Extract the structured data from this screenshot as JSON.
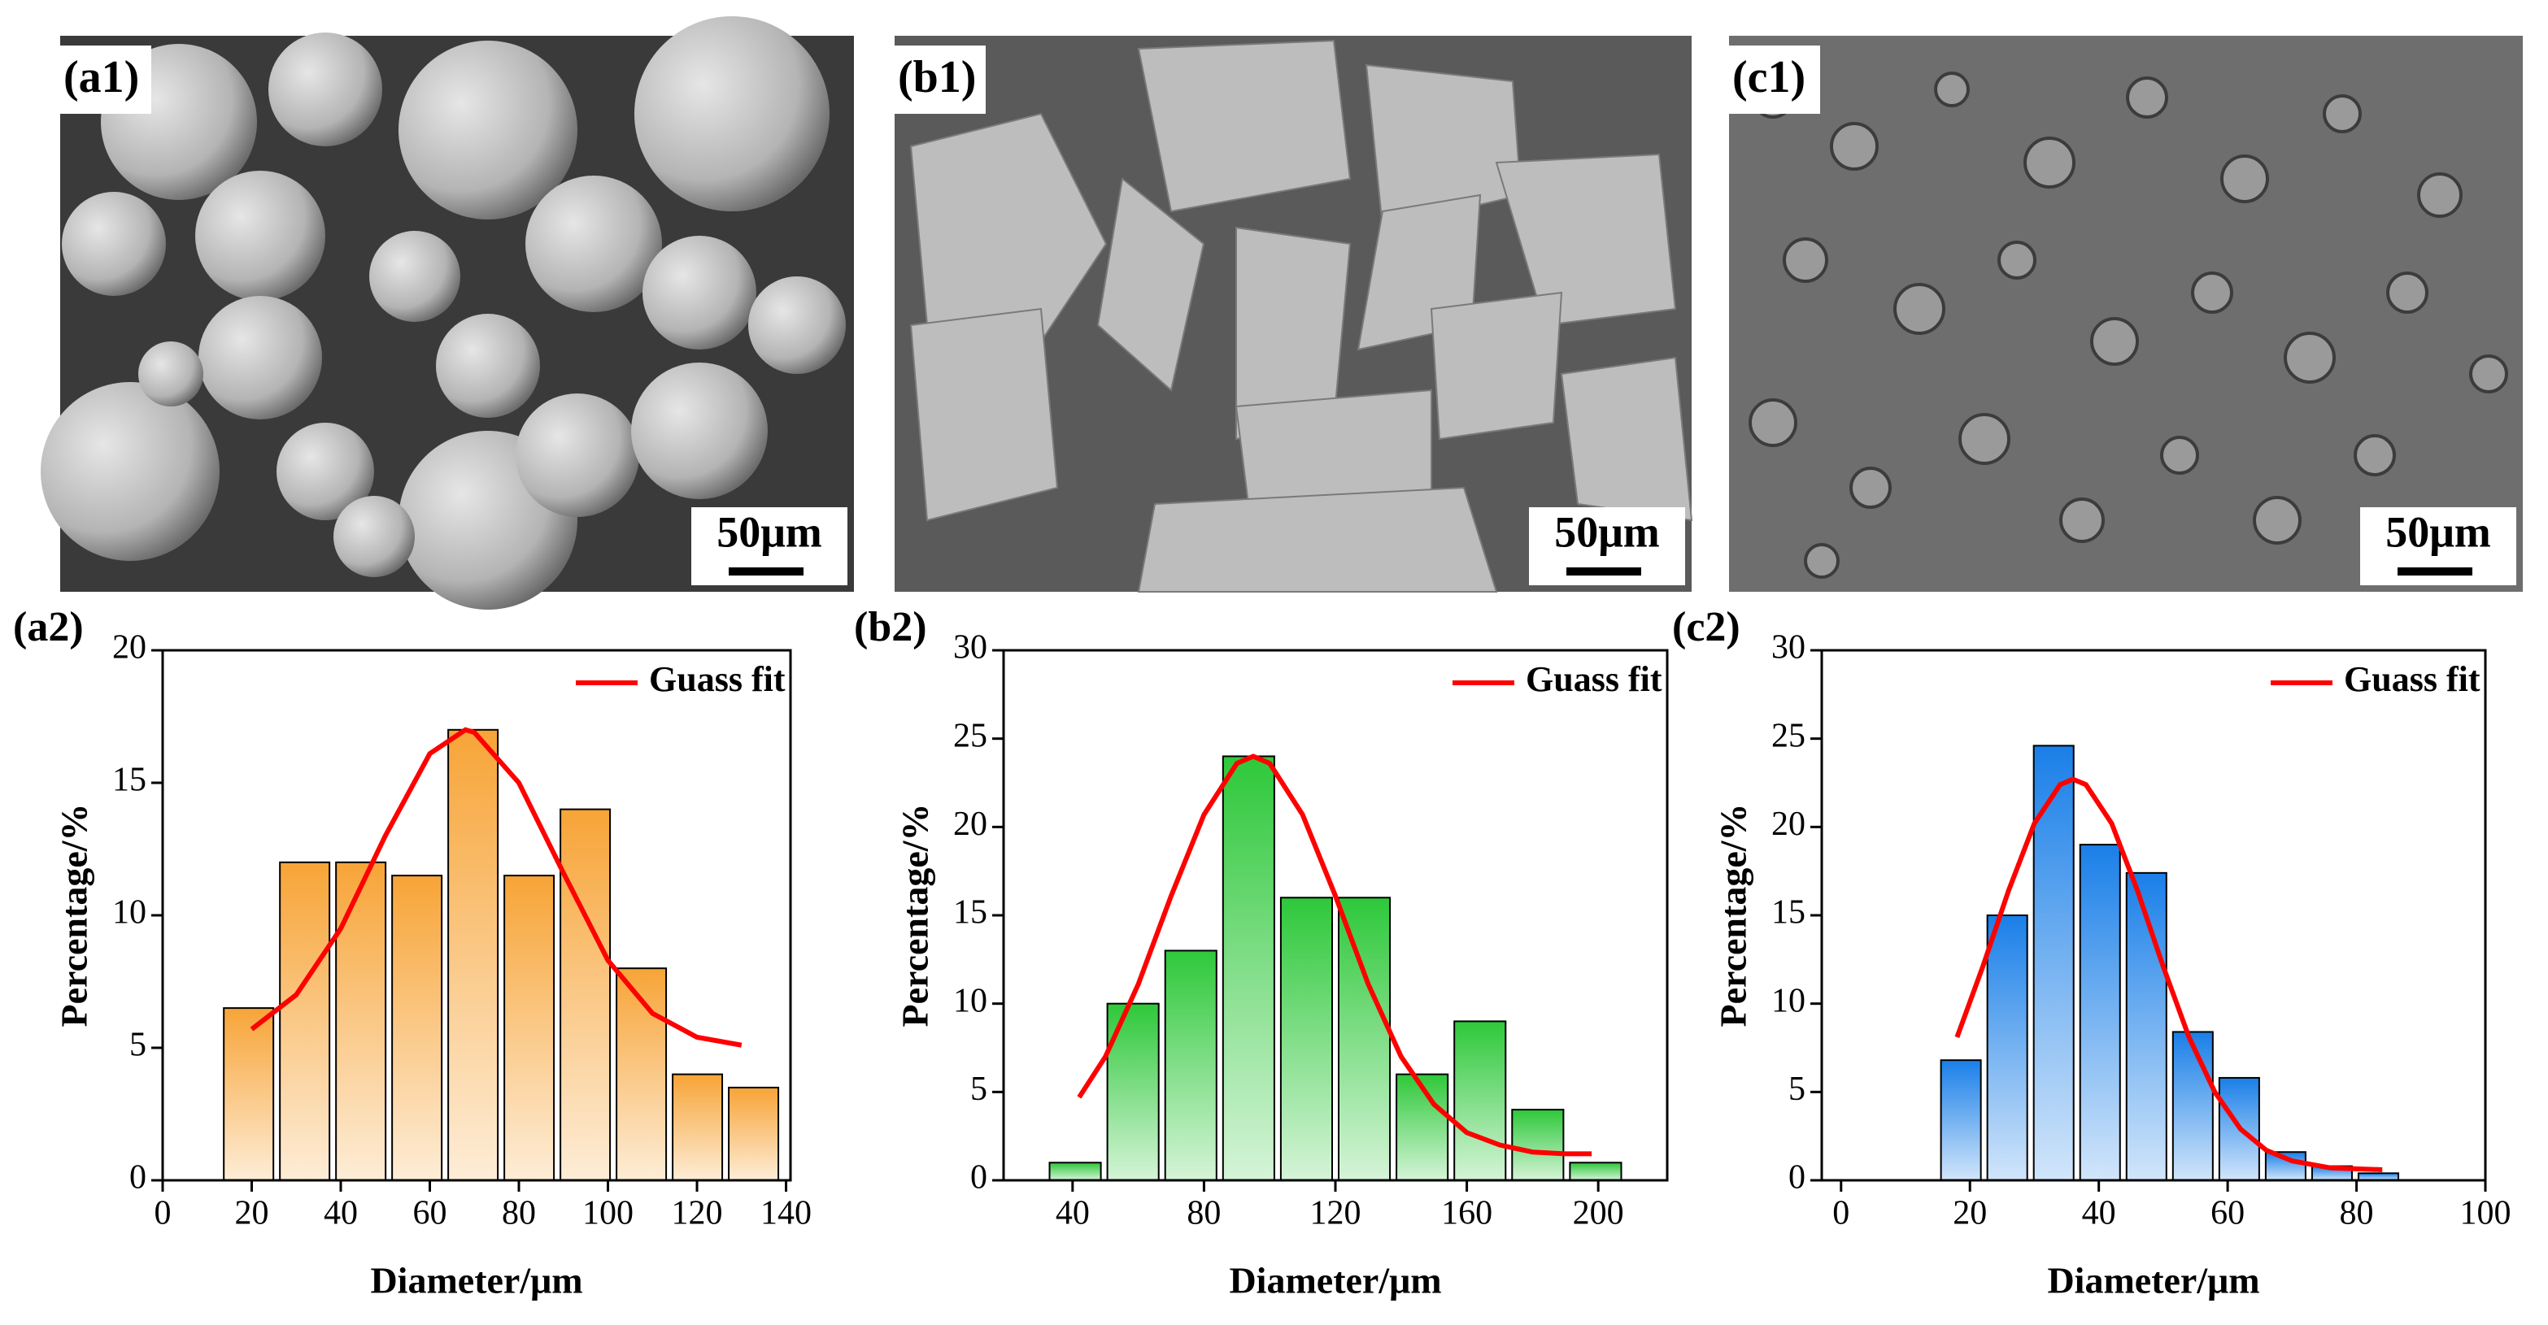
{
  "images": [
    {
      "label": "(a1)",
      "scale_bar": "50μm"
    },
    {
      "label": "(b1)",
      "scale_bar": "50μm"
    },
    {
      "label": "(c1)",
      "scale_bar": "50μm"
    }
  ],
  "chart_data": [
    {
      "type": "histogram",
      "panel_label": "(a2)",
      "xlabel": "Diameter/μm",
      "ylabel": "Percentage/%",
      "bins": [
        13,
        25.6,
        38.2,
        50.8,
        63.4,
        76,
        88.6,
        101.2,
        113.8,
        126.4,
        139
      ],
      "values": [
        6.5,
        12,
        12,
        11.5,
        17,
        11.5,
        14,
        8,
        4,
        3.5
      ],
      "color": "#f7a437",
      "series": [
        {
          "name": "Guass fit",
          "type": "line",
          "color": "#ff0000",
          "x": [
            20,
            30,
            40,
            50,
            60,
            68,
            70,
            80,
            90,
            100,
            110,
            120,
            130
          ],
          "values": [
            5.7,
            7.0,
            9.5,
            13.0,
            16.1,
            17.0,
            16.9,
            15.0,
            11.6,
            8.3,
            6.3,
            5.4,
            5.1
          ]
        }
      ],
      "xlim": [
        0,
        141
      ],
      "ylim": [
        0,
        20
      ],
      "xticks": [
        0,
        20,
        40,
        60,
        80,
        100,
        120,
        140
      ],
      "yticks": [
        0,
        5,
        10,
        15,
        20
      ],
      "legend": "upper right"
    },
    {
      "type": "histogram",
      "panel_label": "(b2)",
      "xlabel": "Diameter/μm",
      "ylabel": "Percentage/%",
      "bins": [
        32,
        49.6,
        67.2,
        84.8,
        102.4,
        120,
        137.6,
        155.2,
        172.8,
        190.4,
        208
      ],
      "values": [
        1,
        10,
        13,
        24,
        16,
        16,
        6,
        9,
        4,
        1
      ],
      "color": "#2ec83a",
      "series": [
        {
          "name": "Guass fit",
          "type": "line",
          "color": "#ff0000",
          "x": [
            42,
            50,
            60,
            70,
            80,
            90,
            95,
            100,
            110,
            120,
            130,
            140,
            150,
            160,
            170,
            180,
            190,
            198
          ],
          "values": [
            4.7,
            7.0,
            11.1,
            16.1,
            20.7,
            23.6,
            24.0,
            23.6,
            20.7,
            16.1,
            11.1,
            7.0,
            4.3,
            2.7,
            2.0,
            1.6,
            1.5,
            1.5
          ]
        }
      ],
      "xlim": [
        19,
        221
      ],
      "ylim": [
        0,
        30
      ],
      "xticks": [
        40,
        80,
        120,
        160,
        200
      ],
      "yticks": [
        0,
        5,
        10,
        15,
        20,
        25,
        30
      ],
      "legend": "upper right"
    },
    {
      "type": "histogram",
      "panel_label": "(c2)",
      "xlabel": "Diameter/μm",
      "ylabel": "Percentage/%",
      "bins": [
        15,
        22.2,
        29.4,
        36.6,
        43.8,
        51,
        58.2,
        65.4,
        72.6,
        79.8,
        87
      ],
      "values": [
        6.8,
        15,
        24.6,
        19,
        17.4,
        8.4,
        5.8,
        1.6,
        0.8,
        0.4
      ],
      "color": "#1a7fe8",
      "series": [
        {
          "name": "Guass fit",
          "type": "line",
          "color": "#ff0000",
          "x": [
            18,
            22,
            26,
            30,
            34,
            36,
            38,
            42,
            46,
            50,
            54,
            58,
            62,
            66,
            70,
            76,
            84
          ],
          "values": [
            8.1,
            12.1,
            16.4,
            20.2,
            22.4,
            22.7,
            22.4,
            20.2,
            16.4,
            12.1,
            8.1,
            5.0,
            2.9,
            1.7,
            1.1,
            0.7,
            0.6
          ]
        }
      ],
      "xlim": [
        -3,
        100
      ],
      "ylim": [
        0,
        30
      ],
      "xticks": [
        0,
        20,
        40,
        60,
        80,
        100
      ],
      "yticks": [
        0,
        5,
        10,
        15,
        20,
        25,
        30
      ],
      "legend": "upper right"
    }
  ]
}
